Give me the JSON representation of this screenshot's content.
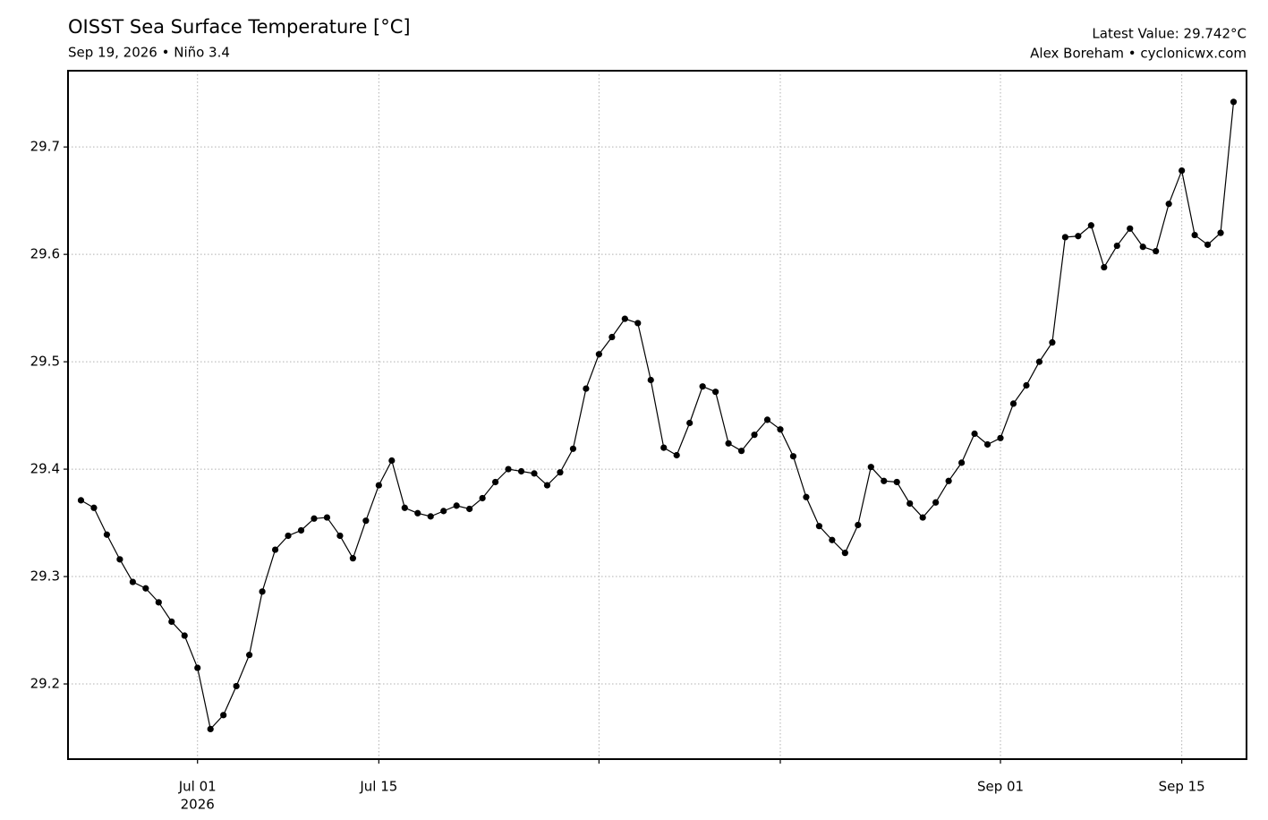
{
  "chart_data": {
    "type": "line",
    "title": "OISST Sea Surface Temperature [°C]",
    "subtitle": "Sep 19, 2026 • Niño 3.4",
    "annotations": [
      "Latest Value: 29.742°C",
      "Alex Boreham • cyclonicwx.com"
    ],
    "x": [
      "2026-06-22",
      "2026-06-23",
      "2026-06-24",
      "2026-06-25",
      "2026-06-26",
      "2026-06-27",
      "2026-06-28",
      "2026-06-29",
      "2026-06-30",
      "2026-07-01",
      "2026-07-02",
      "2026-07-03",
      "2026-07-04",
      "2026-07-05",
      "2026-07-06",
      "2026-07-07",
      "2026-07-08",
      "2026-07-09",
      "2026-07-10",
      "2026-07-11",
      "2026-07-12",
      "2026-07-13",
      "2026-07-14",
      "2026-07-15",
      "2026-07-16",
      "2026-07-17",
      "2026-07-18",
      "2026-07-19",
      "2026-07-20",
      "2026-07-21",
      "2026-07-22",
      "2026-07-23",
      "2026-07-24",
      "2026-07-25",
      "2026-07-26",
      "2026-07-27",
      "2026-07-28",
      "2026-07-29",
      "2026-07-30",
      "2026-07-31",
      "2026-08-01",
      "2026-08-02",
      "2026-08-03",
      "2026-08-04",
      "2026-08-05",
      "2026-08-06",
      "2026-08-07",
      "2026-08-08",
      "2026-08-09",
      "2026-08-10",
      "2026-08-11",
      "2026-08-12",
      "2026-08-13",
      "2026-08-14",
      "2026-08-15",
      "2026-08-16",
      "2026-08-17",
      "2026-08-18",
      "2026-08-19",
      "2026-08-20",
      "2026-08-21",
      "2026-08-22",
      "2026-08-23",
      "2026-08-24",
      "2026-08-25",
      "2026-08-26",
      "2026-08-27",
      "2026-08-28",
      "2026-08-29",
      "2026-08-30",
      "2026-08-31",
      "2026-09-01",
      "2026-09-02",
      "2026-09-03",
      "2026-09-04",
      "2026-09-05",
      "2026-09-06",
      "2026-09-07",
      "2026-09-08",
      "2026-09-09",
      "2026-09-10",
      "2026-09-11",
      "2026-09-12",
      "2026-09-13",
      "2026-09-14",
      "2026-09-15",
      "2026-09-16",
      "2026-09-17",
      "2026-09-18",
      "2026-09-19"
    ],
    "series": [
      {
        "name": "OISST",
        "color": "#000000",
        "values": [
          29.371,
          29.364,
          29.339,
          29.316,
          29.295,
          29.289,
          29.276,
          29.258,
          29.245,
          29.215,
          29.158,
          29.171,
          29.198,
          29.227,
          29.286,
          29.325,
          29.338,
          29.343,
          29.354,
          29.355,
          29.338,
          29.317,
          29.352,
          29.385,
          29.408,
          29.364,
          29.359,
          29.356,
          29.361,
          29.366,
          29.363,
          29.373,
          29.388,
          29.4,
          29.398,
          29.396,
          29.385,
          29.397,
          29.419,
          29.475,
          29.507,
          29.523,
          29.54,
          29.536,
          29.483,
          29.42,
          29.413,
          29.443,
          29.477,
          29.472,
          29.424,
          29.417,
          29.432,
          29.446,
          29.437,
          29.412,
          29.374,
          29.347,
          29.334,
          29.322,
          29.348,
          29.402,
          29.389,
          29.388,
          29.368,
          29.355,
          29.369,
          29.389,
          29.406,
          29.433,
          29.423,
          29.429,
          29.461,
          29.478,
          29.5,
          29.518,
          29.616,
          29.617,
          29.627,
          29.588,
          29.608,
          29.624,
          29.607,
          29.603,
          29.647,
          29.678,
          29.618,
          29.609,
          29.62,
          29.742
        ]
      }
    ],
    "xlim": [
      "2026-06-21",
      "2026-09-20"
    ],
    "xticks": [
      {
        "value": "2026-07-01",
        "label": "Jul 01"
      },
      {
        "value": "2026-07-15",
        "label": "Jul 15"
      },
      {
        "value": "2026-08-01",
        "label": null
      },
      {
        "value": "2026-08-15",
        "label": null
      },
      {
        "value": "2026-09-01",
        "label": "Sep 01"
      },
      {
        "value": "2026-09-15",
        "label": "Sep 15"
      }
    ],
    "x_year_label": "2026",
    "ylim": [
      29.13,
      29.771
    ],
    "yticks": [
      29.2,
      29.3,
      29.4,
      29.5,
      29.6,
      29.7
    ],
    "grid": true
  }
}
